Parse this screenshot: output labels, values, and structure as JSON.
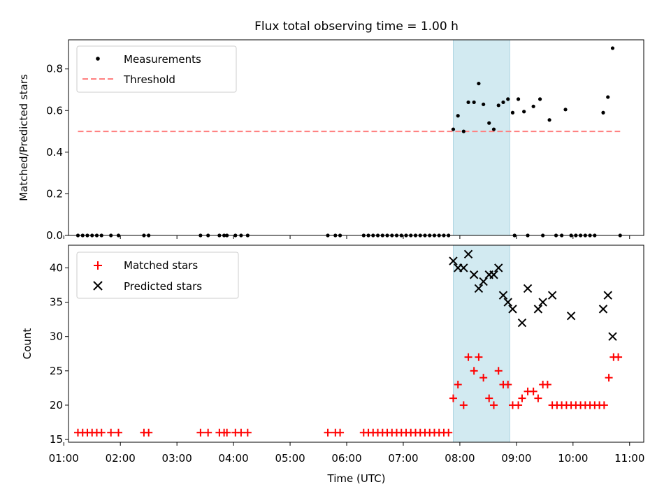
{
  "chart_data": [
    {
      "type": "scatter",
      "title": "Flux total observing time = 1.00 h",
      "ylabel": "Matched/Predicted stars",
      "xlabel": "",
      "xlim": [
        "01:05",
        "11:15"
      ],
      "ylim": [
        0,
        0.94
      ],
      "yticks": [
        0.0,
        0.2,
        0.4,
        0.6,
        0.8
      ],
      "ytick_labels": [
        "0.0",
        "0.2",
        "0.4",
        "0.6",
        "0.8"
      ],
      "shaded_span": {
        "start": "07:53",
        "end": "08:53",
        "color": "#add8e6"
      },
      "legend": {
        "position": "upper-left",
        "entries": [
          "Measurements",
          "Threshold"
        ]
      },
      "series": [
        {
          "name": "Measurements",
          "marker": "dot",
          "color": "#000000",
          "points": [
            [
              "01:15",
              0
            ],
            [
              "01:20",
              0
            ],
            [
              "01:25",
              0
            ],
            [
              "01:30",
              0
            ],
            [
              "01:35",
              0
            ],
            [
              "01:40",
              0
            ],
            [
              "01:50",
              0
            ],
            [
              "01:58",
              0
            ],
            [
              "02:25",
              0
            ],
            [
              "02:30",
              0
            ],
            [
              "03:25",
              0
            ],
            [
              "03:33",
              0
            ],
            [
              "03:45",
              0
            ],
            [
              "03:50",
              0
            ],
            [
              "03:53",
              0
            ],
            [
              "04:02",
              0
            ],
            [
              "04:08",
              0
            ],
            [
              "04:15",
              0
            ],
            [
              "05:40",
              0
            ],
            [
              "05:48",
              0
            ],
            [
              "05:53",
              0
            ],
            [
              "06:18",
              0
            ],
            [
              "06:23",
              0
            ],
            [
              "06:28",
              0
            ],
            [
              "06:33",
              0
            ],
            [
              "06:38",
              0
            ],
            [
              "06:43",
              0
            ],
            [
              "06:48",
              0
            ],
            [
              "06:53",
              0
            ],
            [
              "06:58",
              0
            ],
            [
              "07:03",
              0
            ],
            [
              "07:08",
              0
            ],
            [
              "07:13",
              0
            ],
            [
              "07:18",
              0
            ],
            [
              "07:23",
              0
            ],
            [
              "07:28",
              0
            ],
            [
              "07:33",
              0
            ],
            [
              "07:38",
              0
            ],
            [
              "07:43",
              0
            ],
            [
              "07:48",
              0
            ],
            [
              "07:53",
              0.51
            ],
            [
              "07:58",
              0.575
            ],
            [
              "08:04",
              0.5
            ],
            [
              "08:09",
              0.64
            ],
            [
              "08:15",
              0.64
            ],
            [
              "08:20",
              0.73
            ],
            [
              "08:25",
              0.63
            ],
            [
              "08:31",
              0.54
            ],
            [
              "08:36",
              0.51
            ],
            [
              "08:41",
              0.625
            ],
            [
              "08:46",
              0.64
            ],
            [
              "08:51",
              0.655
            ],
            [
              "08:56",
              0.59
            ],
            [
              "09:02",
              0.655
            ],
            [
              "09:08",
              0.595
            ],
            [
              "09:18",
              0.62
            ],
            [
              "09:25",
              0.655
            ],
            [
              "09:35",
              0.555
            ],
            [
              "09:52",
              0.605
            ],
            [
              "10:32",
              0.59
            ],
            [
              "10:37",
              0.665
            ],
            [
              "10:42",
              0.9
            ],
            [
              "08:58",
              0
            ],
            [
              "09:12",
              0
            ],
            [
              "09:28",
              0
            ],
            [
              "09:42",
              0
            ],
            [
              "09:48",
              0
            ],
            [
              "09:58",
              0
            ],
            [
              "10:03",
              0
            ],
            [
              "10:08",
              0
            ],
            [
              "10:13",
              0
            ],
            [
              "10:18",
              0
            ],
            [
              "10:23",
              0
            ],
            [
              "10:50",
              0
            ]
          ]
        },
        {
          "name": "Threshold",
          "style": "dashed-line",
          "color": "#ff7f7f",
          "points": [
            [
              "01:15",
              0.5
            ],
            [
              "10:50",
              0.5
            ]
          ]
        }
      ]
    },
    {
      "type": "scatter",
      "title": "",
      "ylabel": "Count",
      "xlabel": "Time (UTC)",
      "xlim": [
        "01:05",
        "11:15"
      ],
      "ylim": [
        14.6,
        43.3
      ],
      "yticks": [
        15,
        20,
        25,
        30,
        35,
        40
      ],
      "ytick_labels": [
        "15",
        "20",
        "25",
        "30",
        "35",
        "40"
      ],
      "xticks": [
        "01:00",
        "02:00",
        "03:00",
        "04:00",
        "05:00",
        "06:00",
        "07:00",
        "08:00",
        "09:00",
        "10:00",
        "11:00"
      ],
      "xtick_labels": [
        "01:00",
        "02:00",
        "03:00",
        "04:00",
        "05:00",
        "06:00",
        "07:00",
        "08:00",
        "09:00",
        "10:00",
        "11:00"
      ],
      "shaded_span": {
        "start": "07:53",
        "end": "08:53",
        "color": "#add8e6"
      },
      "legend": {
        "position": "upper-left",
        "entries": [
          "Matched stars",
          "Predicted stars"
        ]
      },
      "series": [
        {
          "name": "Matched stars",
          "marker": "plus",
          "color": "#ff0000",
          "points": [
            [
              "01:15",
              16
            ],
            [
              "01:20",
              16
            ],
            [
              "01:25",
              16
            ],
            [
              "01:30",
              16
            ],
            [
              "01:35",
              16
            ],
            [
              "01:40",
              16
            ],
            [
              "01:50",
              16
            ],
            [
              "01:58",
              16
            ],
            [
              "02:25",
              16
            ],
            [
              "02:30",
              16
            ],
            [
              "03:25",
              16
            ],
            [
              "03:33",
              16
            ],
            [
              "03:45",
              16
            ],
            [
              "03:50",
              16
            ],
            [
              "03:53",
              16
            ],
            [
              "04:02",
              16
            ],
            [
              "04:08",
              16
            ],
            [
              "04:15",
              16
            ],
            [
              "05:40",
              16
            ],
            [
              "05:48",
              16
            ],
            [
              "05:53",
              16
            ],
            [
              "06:18",
              16
            ],
            [
              "06:23",
              16
            ],
            [
              "06:28",
              16
            ],
            [
              "06:33",
              16
            ],
            [
              "06:38",
              16
            ],
            [
              "06:43",
              16
            ],
            [
              "06:48",
              16
            ],
            [
              "06:53",
              16
            ],
            [
              "06:58",
              16
            ],
            [
              "07:03",
              16
            ],
            [
              "07:08",
              16
            ],
            [
              "07:13",
              16
            ],
            [
              "07:18",
              16
            ],
            [
              "07:23",
              16
            ],
            [
              "07:28",
              16
            ],
            [
              "07:33",
              16
            ],
            [
              "07:38",
              16
            ],
            [
              "07:43",
              16
            ],
            [
              "07:48",
              16
            ],
            [
              "07:53",
              21
            ],
            [
              "07:58",
              23
            ],
            [
              "08:04",
              20
            ],
            [
              "08:09",
              27
            ],
            [
              "08:15",
              25
            ],
            [
              "08:20",
              27
            ],
            [
              "08:25",
              24
            ],
            [
              "08:31",
              21
            ],
            [
              "08:36",
              20
            ],
            [
              "08:41",
              25
            ],
            [
              "08:46",
              23
            ],
            [
              "08:51",
              23
            ],
            [
              "08:56",
              20
            ],
            [
              "09:02",
              20
            ],
            [
              "09:06",
              21
            ],
            [
              "09:12",
              22
            ],
            [
              "09:18",
              22
            ],
            [
              "09:23",
              21
            ],
            [
              "09:28",
              23
            ],
            [
              "09:33",
              23
            ],
            [
              "09:38",
              20
            ],
            [
              "09:43",
              20
            ],
            [
              "09:48",
              20
            ],
            [
              "09:53",
              20
            ],
            [
              "09:58",
              20
            ],
            [
              "10:03",
              20
            ],
            [
              "10:08",
              20
            ],
            [
              "10:13",
              20
            ],
            [
              "10:18",
              20
            ],
            [
              "10:23",
              20
            ],
            [
              "10:28",
              20
            ],
            [
              "10:33",
              20
            ],
            [
              "10:38",
              24
            ],
            [
              "10:43",
              27
            ],
            [
              "10:48",
              27
            ]
          ]
        },
        {
          "name": "Predicted stars",
          "marker": "x",
          "color": "#000000",
          "points": [
            [
              "07:53",
              41
            ],
            [
              "07:58",
              40
            ],
            [
              "08:04",
              40
            ],
            [
              "08:09",
              42
            ],
            [
              "08:15",
              39
            ],
            [
              "08:20",
              37
            ],
            [
              "08:25",
              38
            ],
            [
              "08:31",
              39
            ],
            [
              "08:36",
              39
            ],
            [
              "08:41",
              40
            ],
            [
              "08:46",
              36
            ],
            [
              "08:51",
              35
            ],
            [
              "08:56",
              34
            ],
            [
              "09:06",
              32
            ],
            [
              "09:12",
              37
            ],
            [
              "09:23",
              34
            ],
            [
              "09:28",
              35
            ],
            [
              "09:38",
              36
            ],
            [
              "09:58",
              33
            ],
            [
              "10:32",
              34
            ],
            [
              "10:37",
              36
            ],
            [
              "10:42",
              30
            ]
          ]
        }
      ]
    }
  ]
}
